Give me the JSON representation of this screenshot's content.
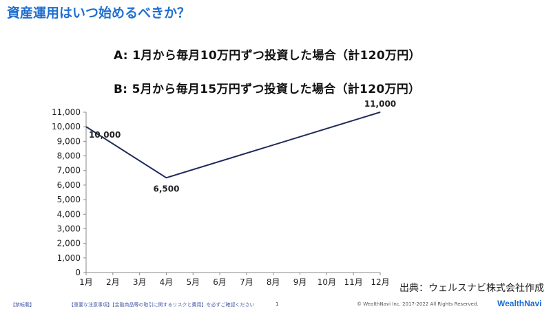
{
  "slide": {
    "title": "資産運用はいつ始めるべきか？",
    "plan_a": "A: 1月から毎月10万円ずつ投資した場合（計120万円）",
    "plan_b": "B: 5月から毎月15万円ずつ投資した場合（計120万円）",
    "source": "出典：ウェルスナビ株式会社作成"
  },
  "footer": {
    "left": "【禁転載】",
    "notice": "【重要な注意事項】【金融商品等の取引に関するリスクと費用】を必ずご確認ください",
    "page": "1",
    "copyright": "© WealthNavi Inc. 2017-2022 All Rights Reserved.",
    "logo": "WealthNavi"
  },
  "colors": {
    "title": "#1f6fd1",
    "line": "#1f2a5a",
    "axis": "#8a8a8a"
  },
  "chart_data": {
    "type": "line",
    "categories": [
      "1月",
      "2月",
      "3月",
      "4月",
      "5月",
      "6月",
      "7月",
      "8月",
      "9月",
      "10月",
      "11月",
      "12月"
    ],
    "series": [
      {
        "points": [
          {
            "x": "1月",
            "y": 10000
          },
          {
            "x": "4月",
            "y": 6500
          },
          {
            "x": "12月",
            "y": 11000
          }
        ]
      }
    ],
    "data_labels": [
      {
        "x": "1月",
        "y": 10000,
        "text": "10,000"
      },
      {
        "x": "4月",
        "y": 6500,
        "text": "6,500"
      },
      {
        "x": "12月",
        "y": 11000,
        "text": "11,000"
      }
    ],
    "yticks": [
      "0",
      "1,000",
      "2,000",
      "3,000",
      "4,000",
      "5,000",
      "6,000",
      "7,000",
      "8,000",
      "9,000",
      "10,000",
      "11,000"
    ],
    "ylim": [
      0,
      11000
    ],
    "grid": false,
    "title": "",
    "xlabel": "",
    "ylabel": ""
  }
}
